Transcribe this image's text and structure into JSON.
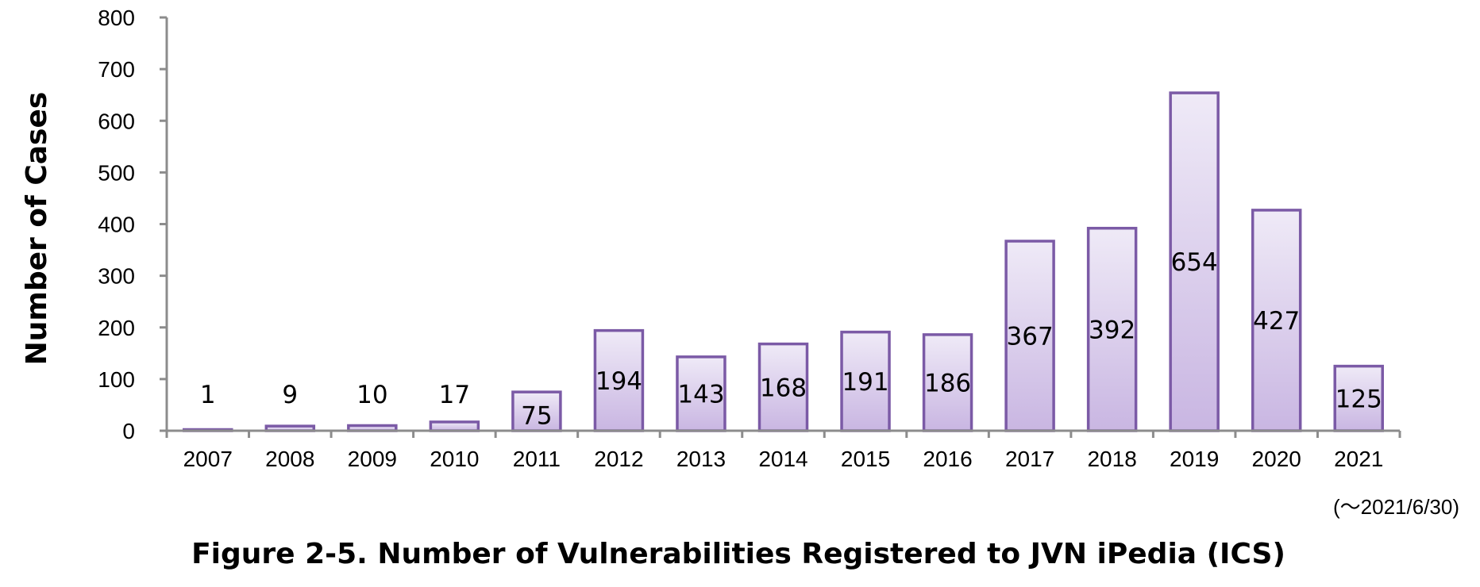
{
  "chart_data": {
    "type": "bar",
    "categories": [
      "2007",
      "2008",
      "2009",
      "2010",
      "2011",
      "2012",
      "2013",
      "2014",
      "2015",
      "2016",
      "2017",
      "2018",
      "2019",
      "2020",
      "2021"
    ],
    "values": [
      1,
      9,
      10,
      17,
      75,
      194,
      143,
      168,
      191,
      186,
      367,
      392,
      654,
      427,
      125
    ],
    "title": "",
    "xlabel": "",
    "ylabel": "Number of Cases",
    "ylim": [
      0,
      800
    ],
    "yticks": [
      "0",
      "100",
      "200",
      "300",
      "400",
      "500",
      "600",
      "700",
      "800"
    ],
    "grid": false,
    "legend": "none",
    "note": "(～2021/6/30)",
    "colors": {
      "bar_fill_top": "#efeaf7",
      "bar_fill_bottom": "#c9b6e2",
      "bar_stroke": "#7b5aa6",
      "axis": "#8c8c8c"
    }
  },
  "caption": "Figure 2-5. Number of Vulnerabilities Registered to JVN iPedia (ICS)"
}
